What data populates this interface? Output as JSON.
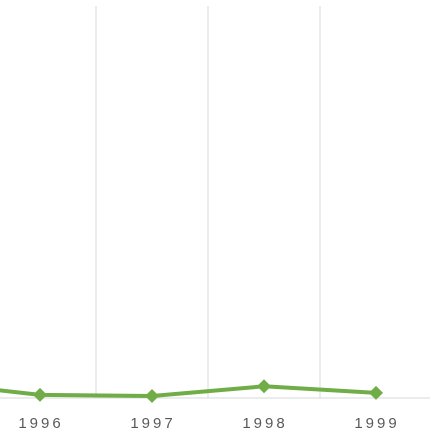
{
  "chart_data": {
    "type": "line",
    "categories": [
      null,
      "1996",
      "1997",
      "1998",
      "1999"
    ],
    "series": [
      {
        "color": "#70ad47",
        "values": [
          4,
          0.8,
          0.5,
          3,
          1.3
        ]
      }
    ],
    "ylim": [
      0,
      100
    ],
    "grid": true
  }
}
